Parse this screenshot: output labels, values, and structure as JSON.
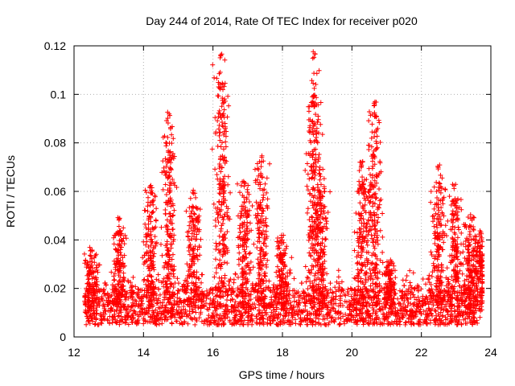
{
  "chart_data": {
    "type": "scatter",
    "title": "Day 244 of 2014, Rate Of TEC Index for receiver p020",
    "xlabel": "GPS time / hours",
    "ylabel": "ROTI / TECUs",
    "xlim": [
      12,
      24
    ],
    "ylim": [
      0,
      0.12
    ],
    "xticks": [
      12,
      14,
      16,
      18,
      20,
      22,
      24
    ],
    "xtick_labels": [
      "12",
      "14",
      "16",
      "18",
      "20",
      "22",
      "24"
    ],
    "yticks": [
      0,
      0.02,
      0.04,
      0.06,
      0.08,
      0.1,
      0.12
    ],
    "ytick_labels": [
      "0",
      "0.02",
      "0.04",
      "0.06",
      "0.08",
      "0.1",
      "0.12"
    ],
    "grid": true,
    "marker": "+",
    "marker_color": "#ff0000",
    "x_range_of_data": [
      12.3,
      23.75
    ],
    "baseline_band": [
      0.005,
      0.02
    ],
    "spikes": [
      {
        "x": 12.5,
        "peak": 0.038
      },
      {
        "x": 13.3,
        "peak": 0.05
      },
      {
        "x": 14.2,
        "peak": 0.063
      },
      {
        "x": 14.75,
        "peak": 0.093
      },
      {
        "x": 15.45,
        "peak": 0.061
      },
      {
        "x": 16.25,
        "peak": 0.117
      },
      {
        "x": 16.9,
        "peak": 0.065
      },
      {
        "x": 17.4,
        "peak": 0.075
      },
      {
        "x": 18.0,
        "peak": 0.042
      },
      {
        "x": 18.9,
        "peak": 0.118
      },
      {
        "x": 19.1,
        "peak": 0.07
      },
      {
        "x": 20.3,
        "peak": 0.073
      },
      {
        "x": 20.65,
        "peak": 0.097
      },
      {
        "x": 21.1,
        "peak": 0.032
      },
      {
        "x": 22.5,
        "peak": 0.071
      },
      {
        "x": 22.95,
        "peak": 0.063
      },
      {
        "x": 23.4,
        "peak": 0.051
      },
      {
        "x": 23.7,
        "peak": 0.044
      }
    ]
  }
}
